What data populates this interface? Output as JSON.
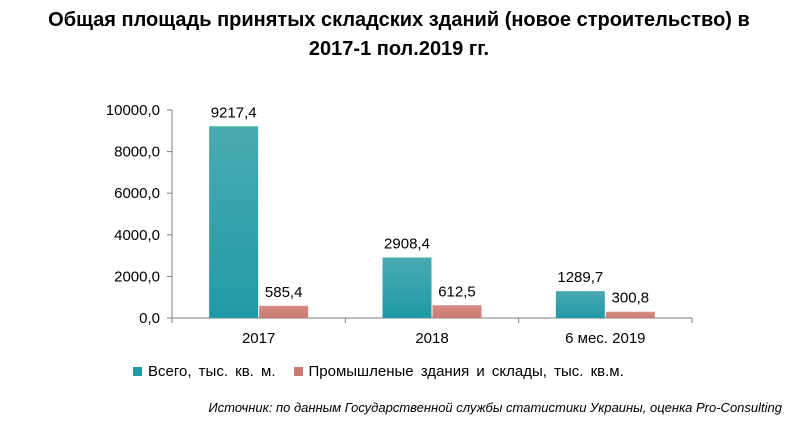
{
  "chart_data": {
    "type": "bar",
    "title_line1": "Общая площадь принятых складских зданий (новое строительство) в",
    "title_line2": "2017-1 пол.2019 гг.",
    "categories": [
      "2017",
      "2018",
      "6 мес. 2019"
    ],
    "series": [
      {
        "name": "Всего, тыс. кв. м.",
        "values": [
          9217.4,
          2908.4,
          1289.7
        ],
        "labels": [
          "9217,4",
          "2908,4",
          "1289,7"
        ],
        "color": "#1f9aa6"
      },
      {
        "name": "Промышленые здания и склады, тыс. кв.м.",
        "values": [
          585.4,
          612.5,
          300.8
        ],
        "labels": [
          "585,4",
          "612,5",
          "300,8"
        ],
        "color": "#c97a72"
      }
    ],
    "ylim": [
      0,
      10000
    ],
    "yticks": [
      0,
      2000,
      4000,
      6000,
      8000,
      10000
    ],
    "ytick_labels": [
      "0,0",
      "2000,0",
      "4000,0",
      "6000,0",
      "8000,0",
      "10000,0"
    ],
    "grid": false,
    "legend_position": "bottom"
  },
  "source": "Источник: по данным Государственной службы статистики Украины, оценка Pro-Consulting"
}
